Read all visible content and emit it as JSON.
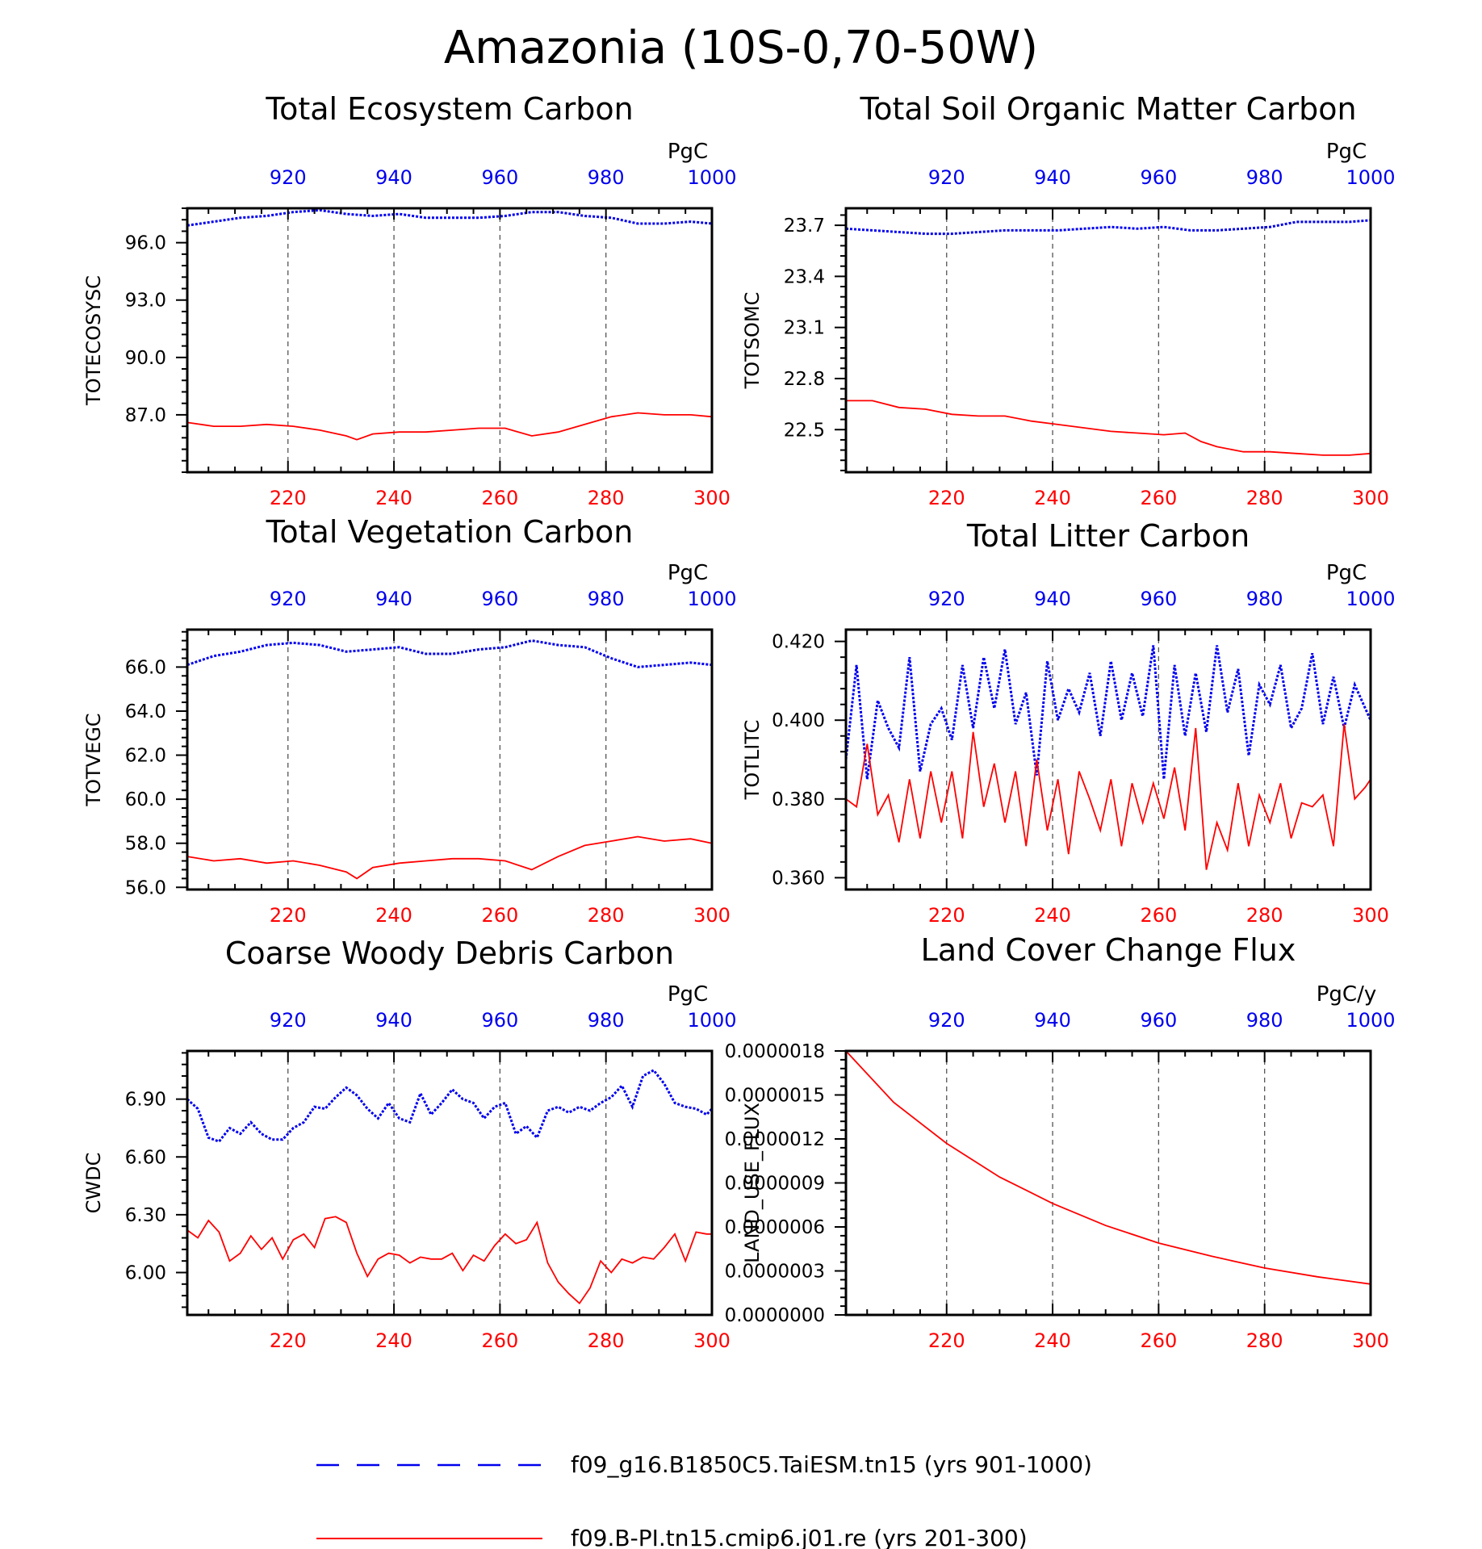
{
  "title": "Amazonia (10S-0,70-50W)",
  "colors": {
    "blue": "#0000ee",
    "red": "#ff0000",
    "axis": "#000000",
    "grid": "#555555"
  },
  "legend": [
    {
      "label": "f09_g16.B1850C5.TaiESM.tn15 (yrs 901-1000)",
      "color": "#0000ee",
      "style": "dashed"
    },
    {
      "label": "f09.B-PI.tn15.cmip6.j01.re (yrs 201-300)",
      "color": "#ff0000",
      "style": "solid"
    }
  ],
  "chart_data": [
    {
      "type": "line",
      "title": "Total Ecosystem Carbon",
      "ylabel": "TOTECOSYSC",
      "units": "PgC",
      "ylim": [
        84.0,
        97.8
      ],
      "yticks": [
        87.0,
        90.0,
        93.0,
        96.0
      ],
      "yticklabels": [
        "87.0",
        "90.0",
        "93.0",
        "96.0"
      ],
      "x_bottom": {
        "range": [
          201,
          300
        ],
        "ticks": [
          220,
          240,
          260,
          280,
          300
        ]
      },
      "x_top": {
        "range": [
          901,
          1000
        ],
        "ticks": [
          920,
          940,
          960,
          980,
          1000
        ]
      },
      "series": [
        {
          "name": "f09_g16.B1850C5.TaiESM.tn15 (yrs 901-1000)",
          "axis": "top",
          "x": [
            901,
            906,
            911,
            916,
            921,
            926,
            931,
            936,
            941,
            946,
            951,
            956,
            961,
            966,
            971,
            976,
            981,
            986,
            991,
            996,
            1000
          ],
          "values": [
            96.9,
            97.1,
            97.3,
            97.4,
            97.6,
            97.7,
            97.5,
            97.4,
            97.5,
            97.3,
            97.3,
            97.3,
            97.4,
            97.6,
            97.6,
            97.4,
            97.3,
            97.0,
            97.0,
            97.1,
            97.0
          ]
        },
        {
          "name": "f09.B-PI.tn15.cmip6.j01.re (yrs 201-300)",
          "axis": "bottom",
          "x": [
            201,
            206,
            211,
            216,
            221,
            226,
            231,
            233,
            236,
            241,
            246,
            251,
            256,
            261,
            266,
            271,
            276,
            281,
            286,
            291,
            296,
            300
          ],
          "values": [
            86.6,
            86.4,
            86.4,
            86.5,
            86.4,
            86.2,
            85.9,
            85.7,
            86.0,
            86.1,
            86.1,
            86.2,
            86.3,
            86.3,
            85.9,
            86.1,
            86.5,
            86.9,
            87.1,
            87.0,
            87.0,
            86.9
          ]
        }
      ]
    },
    {
      "type": "line",
      "title": "Total Soil Organic Matter Carbon",
      "ylabel": "TOTSOMC",
      "units": "PgC",
      "ylim": [
        22.25,
        23.8
      ],
      "yticks": [
        22.5,
        22.8,
        23.1,
        23.4,
        23.7
      ],
      "yticklabels": [
        "22.5",
        "22.8",
        "23.1",
        "23.4",
        "23.7"
      ],
      "x_bottom": {
        "range": [
          201,
          300
        ],
        "ticks": [
          220,
          240,
          260,
          280,
          300
        ]
      },
      "x_top": {
        "range": [
          901,
          1000
        ],
        "ticks": [
          920,
          940,
          960,
          980,
          1000
        ]
      },
      "series": [
        {
          "name": "f09_g16.B1850C5.TaiESM.tn15 (yrs 901-1000)",
          "axis": "top",
          "x": [
            901,
            906,
            911,
            916,
            921,
            926,
            931,
            936,
            941,
            946,
            951,
            956,
            961,
            966,
            971,
            976,
            981,
            986,
            991,
            996,
            1000
          ],
          "values": [
            23.68,
            23.67,
            23.66,
            23.65,
            23.65,
            23.66,
            23.67,
            23.67,
            23.67,
            23.68,
            23.69,
            23.68,
            23.69,
            23.67,
            23.67,
            23.68,
            23.69,
            23.72,
            23.72,
            23.72,
            23.73
          ]
        },
        {
          "name": "f09.B-PI.tn15.cmip6.j01.re (yrs 201-300)",
          "axis": "bottom",
          "x": [
            201,
            206,
            211,
            216,
            221,
            226,
            231,
            236,
            241,
            246,
            251,
            256,
            261,
            265,
            268,
            271,
            276,
            281,
            286,
            291,
            296,
            300
          ],
          "values": [
            22.67,
            22.67,
            22.63,
            22.62,
            22.59,
            22.58,
            22.58,
            22.55,
            22.53,
            22.51,
            22.49,
            22.48,
            22.47,
            22.48,
            22.43,
            22.4,
            22.37,
            22.37,
            22.36,
            22.35,
            22.35,
            22.36
          ]
        }
      ]
    },
    {
      "type": "line",
      "title": "Total Vegetation Carbon",
      "ylabel": "TOTVEGC",
      "units": "PgC",
      "ylim": [
        55.9,
        67.7
      ],
      "yticks": [
        56.0,
        58.0,
        60.0,
        62.0,
        64.0,
        66.0
      ],
      "yticklabels": [
        "56.0",
        "58.0",
        "60.0",
        "62.0",
        "64.0",
        "66.0"
      ],
      "x_bottom": {
        "range": [
          201,
          300
        ],
        "ticks": [
          220,
          240,
          260,
          280,
          300
        ]
      },
      "x_top": {
        "range": [
          901,
          1000
        ],
        "ticks": [
          920,
          940,
          960,
          980,
          1000
        ]
      },
      "series": [
        {
          "name": "f09_g16.B1850C5.TaiESM.tn15 (yrs 901-1000)",
          "axis": "top",
          "x": [
            901,
            906,
            911,
            916,
            921,
            926,
            931,
            936,
            941,
            946,
            951,
            956,
            961,
            966,
            971,
            976,
            981,
            986,
            991,
            996,
            1000
          ],
          "values": [
            66.1,
            66.5,
            66.7,
            67.0,
            67.1,
            67.0,
            66.7,
            66.8,
            66.9,
            66.6,
            66.6,
            66.8,
            66.9,
            67.2,
            67.0,
            66.9,
            66.4,
            66.0,
            66.1,
            66.2,
            66.1
          ]
        },
        {
          "name": "f09.B-PI.tn15.cmip6.j01.re (yrs 201-300)",
          "axis": "bottom",
          "x": [
            201,
            206,
            211,
            216,
            221,
            226,
            231,
            233,
            236,
            241,
            246,
            251,
            256,
            261,
            266,
            271,
            276,
            281,
            286,
            291,
            296,
            300
          ],
          "values": [
            57.4,
            57.2,
            57.3,
            57.1,
            57.2,
            57.0,
            56.7,
            56.4,
            56.9,
            57.1,
            57.2,
            57.3,
            57.3,
            57.2,
            56.8,
            57.4,
            57.9,
            58.1,
            58.3,
            58.1,
            58.2,
            58.0
          ]
        }
      ]
    },
    {
      "type": "line",
      "title": "Total Litter Carbon",
      "ylabel": "TOTLITC",
      "units": "PgC",
      "ylim": [
        0.357,
        0.423
      ],
      "yticks": [
        0.36,
        0.38,
        0.4,
        0.42
      ],
      "yticklabels": [
        "0.360",
        "0.380",
        "0.400",
        "0.420"
      ],
      "x_bottom": {
        "range": [
          201,
          300
        ],
        "ticks": [
          220,
          240,
          260,
          280,
          300
        ]
      },
      "x_top": {
        "range": [
          901,
          1000
        ],
        "ticks": [
          920,
          940,
          960,
          980,
          1000
        ]
      },
      "series": [
        {
          "name": "f09_g16.B1850C5.TaiESM.tn15 (yrs 901-1000)",
          "axis": "top",
          "x": [
            901,
            903,
            905,
            907,
            909,
            911,
            913,
            915,
            917,
            919,
            921,
            923,
            925,
            927,
            929,
            931,
            933,
            935,
            937,
            939,
            941,
            943,
            945,
            947,
            949,
            951,
            953,
            955,
            957,
            959,
            961,
            963,
            965,
            967,
            969,
            971,
            973,
            975,
            977,
            979,
            981,
            983,
            985,
            987,
            989,
            991,
            993,
            995,
            997,
            999,
            1000
          ],
          "values": [
            0.39,
            0.414,
            0.385,
            0.405,
            0.398,
            0.393,
            0.416,
            0.387,
            0.399,
            0.403,
            0.395,
            0.414,
            0.398,
            0.416,
            0.403,
            0.418,
            0.399,
            0.407,
            0.386,
            0.415,
            0.4,
            0.408,
            0.402,
            0.412,
            0.396,
            0.415,
            0.4,
            0.412,
            0.401,
            0.419,
            0.385,
            0.414,
            0.396,
            0.412,
            0.397,
            0.419,
            0.402,
            0.413,
            0.391,
            0.409,
            0.404,
            0.414,
            0.398,
            0.403,
            0.417,
            0.399,
            0.411,
            0.398,
            0.409,
            0.403,
            0.4
          ]
        },
        {
          "name": "f09.B-PI.tn15.cmip6.j01.re (yrs 201-300)",
          "axis": "bottom",
          "x": [
            201,
            203,
            205,
            207,
            209,
            211,
            213,
            215,
            217,
            219,
            221,
            223,
            225,
            227,
            229,
            231,
            233,
            235,
            237,
            239,
            241,
            243,
            245,
            247,
            249,
            251,
            253,
            255,
            257,
            259,
            261,
            263,
            265,
            267,
            269,
            271,
            273,
            275,
            277,
            279,
            281,
            283,
            285,
            287,
            289,
            291,
            293,
            295,
            297,
            299,
            300
          ],
          "values": [
            0.38,
            0.378,
            0.394,
            0.376,
            0.381,
            0.369,
            0.385,
            0.37,
            0.387,
            0.374,
            0.387,
            0.37,
            0.397,
            0.378,
            0.389,
            0.374,
            0.387,
            0.368,
            0.39,
            0.372,
            0.385,
            0.366,
            0.387,
            0.38,
            0.372,
            0.385,
            0.368,
            0.384,
            0.374,
            0.384,
            0.375,
            0.388,
            0.372,
            0.398,
            0.362,
            0.374,
            0.367,
            0.384,
            0.368,
            0.381,
            0.374,
            0.384,
            0.37,
            0.379,
            0.378,
            0.381,
            0.368,
            0.399,
            0.38,
            0.383,
            0.385
          ]
        }
      ]
    },
    {
      "type": "line",
      "title": "Coarse Woody Debris Carbon",
      "ylabel": "CWDC",
      "units": "PgC",
      "ylim": [
        5.78,
        7.15
      ],
      "yticks": [
        6.0,
        6.3,
        6.6,
        6.9
      ],
      "yticklabels": [
        "6.00",
        "6.30",
        "6.60",
        "6.90"
      ],
      "x_bottom": {
        "range": [
          201,
          300
        ],
        "ticks": [
          220,
          240,
          260,
          280,
          300
        ]
      },
      "x_top": {
        "range": [
          901,
          1000
        ],
        "ticks": [
          920,
          940,
          960,
          980,
          1000
        ]
      },
      "series": [
        {
          "name": "f09_g16.B1850C5.TaiESM.tn15 (yrs 901-1000)",
          "axis": "top",
          "x": [
            901,
            903,
            905,
            907,
            909,
            911,
            913,
            915,
            917,
            919,
            921,
            923,
            925,
            927,
            929,
            931,
            933,
            935,
            937,
            939,
            941,
            943,
            945,
            947,
            949,
            951,
            953,
            955,
            957,
            959,
            961,
            963,
            965,
            967,
            969,
            971,
            973,
            975,
            977,
            979,
            981,
            983,
            985,
            987,
            989,
            991,
            993,
            995,
            997,
            999,
            1000
          ],
          "values": [
            6.9,
            6.85,
            6.7,
            6.68,
            6.75,
            6.72,
            6.78,
            6.72,
            6.69,
            6.69,
            6.75,
            6.78,
            6.86,
            6.85,
            6.91,
            6.96,
            6.92,
            6.85,
            6.8,
            6.88,
            6.8,
            6.78,
            6.93,
            6.82,
            6.88,
            6.95,
            6.9,
            6.88,
            6.8,
            6.86,
            6.88,
            6.72,
            6.76,
            6.7,
            6.84,
            6.86,
            6.83,
            6.86,
            6.84,
            6.88,
            6.91,
            6.97,
            6.86,
            7.02,
            7.05,
            6.98,
            6.88,
            6.86,
            6.85,
            6.82,
            6.85
          ]
        },
        {
          "name": "f09.B-PI.tn15.cmip6.j01.re (yrs 201-300)",
          "axis": "bottom",
          "x": [
            201,
            203,
            205,
            207,
            209,
            211,
            213,
            215,
            217,
            219,
            221,
            223,
            225,
            227,
            229,
            231,
            233,
            235,
            237,
            239,
            241,
            243,
            245,
            247,
            249,
            251,
            253,
            255,
            257,
            259,
            261,
            263,
            265,
            267,
            269,
            271,
            273,
            275,
            277,
            279,
            281,
            283,
            285,
            287,
            289,
            291,
            293,
            295,
            297,
            299,
            300
          ],
          "values": [
            6.22,
            6.18,
            6.27,
            6.21,
            6.06,
            6.1,
            6.19,
            6.12,
            6.18,
            6.07,
            6.17,
            6.2,
            6.13,
            6.28,
            6.29,
            6.26,
            6.1,
            5.98,
            6.07,
            6.1,
            6.09,
            6.05,
            6.08,
            6.07,
            6.07,
            6.1,
            6.01,
            6.09,
            6.06,
            6.14,
            6.2,
            6.15,
            6.17,
            6.26,
            6.05,
            5.95,
            5.89,
            5.84,
            5.92,
            6.06,
            6.0,
            6.07,
            6.05,
            6.08,
            6.07,
            6.13,
            6.2,
            6.06,
            6.21,
            6.2,
            6.2
          ]
        }
      ]
    },
    {
      "type": "line",
      "title": "Land Cover Change Flux",
      "ylabel": "LAND_USE_FLUX",
      "units": "PgC/y",
      "ylim": [
        0.0,
        1.8e-06
      ],
      "yticks": [
        0.0,
        3e-07,
        6e-07,
        9e-07,
        1.2e-06,
        1.5e-06,
        1.8e-06
      ],
      "yticklabels": [
        "0.0000000",
        "0.0000003",
        "0.0000006",
        "0.0000009",
        "0.0000012",
        "0.0000015",
        "0.0000018"
      ],
      "x_bottom": {
        "range": [
          201,
          300
        ],
        "ticks": [
          220,
          240,
          260,
          280,
          300
        ]
      },
      "x_top": {
        "range": [
          901,
          1000
        ],
        "ticks": [
          920,
          940,
          960,
          980,
          1000
        ]
      },
      "series": [
        {
          "name": "f09.B-PI.tn15.cmip6.j01.re (yrs 201-300)",
          "axis": "bottom",
          "x": [
            201,
            210,
            220,
            230,
            240,
            250,
            260,
            270,
            280,
            290,
            300
          ],
          "values": [
            1.8e-06,
            1.45e-06,
            1.17e-06,
            9.4e-07,
            7.6e-07,
            6.1e-07,
            4.9e-07,
            4e-07,
            3.2e-07,
            2.6e-07,
            2.1e-07
          ]
        }
      ]
    }
  ]
}
